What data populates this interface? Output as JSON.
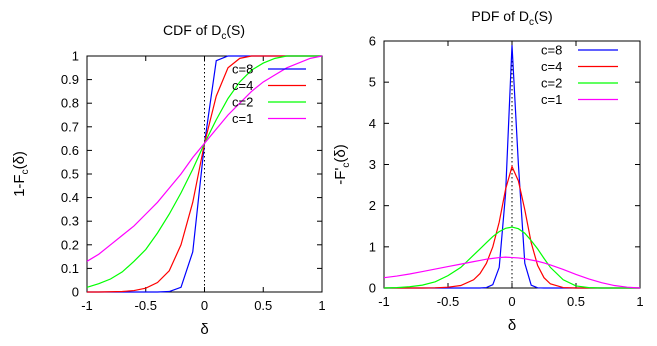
{
  "chart_data": [
    {
      "type": "line",
      "title": "CDF of D_c(S)",
      "title_parts": {
        "main": "CDF of D",
        "sub": "c",
        "tail": "(S)"
      },
      "xlabel": "δ",
      "ylabel_parts": {
        "main": "1-F",
        "sub": "c",
        "tail": "(δ)"
      },
      "xlim": [
        -1,
        1
      ],
      "ylim": [
        0,
        1
      ],
      "xticks": [
        -1,
        -0.5,
        0,
        0.5,
        1
      ],
      "xtick_labels": [
        "-1",
        "-0.5",
        "0",
        "0.5",
        "1"
      ],
      "yticks": [
        0,
        0.1,
        0.2,
        0.3,
        0.4,
        0.5,
        0.6,
        0.7,
        0.8,
        0.9,
        1
      ],
      "ytick_labels": [
        "0",
        "0.1",
        "0.2",
        "0.3",
        "0.4",
        "0.5",
        "0.6",
        "0.7",
        "0.8",
        "0.9",
        "1"
      ],
      "vline_x": 0,
      "legend_position": "top-right",
      "x": [
        -1,
        -0.9,
        -0.8,
        -0.7,
        -0.6,
        -0.5,
        -0.4,
        -0.3,
        -0.2,
        -0.1,
        0,
        0.1,
        0.2,
        0.3,
        0.4,
        0.5,
        0.6,
        0.7,
        0.8,
        0.9,
        1
      ],
      "series": [
        {
          "name": "c=8",
          "color": "#0000ff",
          "values": [
            0,
            0,
            0,
            0,
            0,
            0,
            0,
            0.002,
            0.02,
            0.17,
            0.63,
            0.98,
            1,
            1,
            1,
            1,
            1,
            1,
            1,
            1,
            1
          ]
        },
        {
          "name": "c=4",
          "color": "#ff0000",
          "values": [
            0,
            0,
            0.001,
            0.002,
            0.006,
            0.016,
            0.04,
            0.09,
            0.2,
            0.38,
            0.63,
            0.83,
            0.95,
            0.99,
            1,
            1,
            1,
            1,
            1,
            1,
            1
          ]
        },
        {
          "name": "c=2",
          "color": "#00ff00",
          "values": [
            0.02,
            0.035,
            0.055,
            0.085,
            0.13,
            0.18,
            0.25,
            0.33,
            0.42,
            0.52,
            0.63,
            0.73,
            0.82,
            0.89,
            0.94,
            0.97,
            0.99,
            1,
            1,
            1,
            1
          ]
        },
        {
          "name": "c=1",
          "color": "#ff00ff",
          "values": [
            0.13,
            0.16,
            0.2,
            0.24,
            0.28,
            0.33,
            0.38,
            0.44,
            0.5,
            0.57,
            0.63,
            0.69,
            0.75,
            0.8,
            0.85,
            0.89,
            0.92,
            0.95,
            0.97,
            0.99,
            1
          ]
        }
      ]
    },
    {
      "type": "line",
      "title": "PDF of D_c(S)",
      "title_parts": {
        "main": "PDF of D",
        "sub": "c",
        "tail": "(S)"
      },
      "xlabel": "δ",
      "ylabel_parts": {
        "main": "-F'",
        "sub": "c",
        "tail": "(δ)"
      },
      "xlim": [
        -1,
        1
      ],
      "ylim": [
        0,
        6
      ],
      "xticks": [
        -1,
        -0.5,
        0,
        0.5,
        1
      ],
      "xtick_labels": [
        "-1",
        "-0.5",
        "0",
        "0.5",
        "1"
      ],
      "yticks": [
        0,
        1,
        2,
        3,
        4,
        5,
        6
      ],
      "ytick_labels": [
        "0",
        "1",
        "2",
        "3",
        "4",
        "5",
        "6"
      ],
      "vline_x": 0,
      "legend_position": "top-right",
      "x": [
        -1,
        -0.9,
        -0.8,
        -0.7,
        -0.6,
        -0.5,
        -0.4,
        -0.3,
        -0.25,
        -0.2,
        -0.15,
        -0.1,
        -0.05,
        0,
        0.05,
        0.1,
        0.15,
        0.2,
        0.25,
        0.3,
        0.4,
        0.5,
        0.6,
        0.7,
        0.8,
        0.9,
        1
      ],
      "series": [
        {
          "name": "c=8",
          "color": "#0000ff",
          "values": [
            0,
            0,
            0,
            0,
            0,
            0,
            0,
            0,
            0,
            0.01,
            0.08,
            0.5,
            2.3,
            5.9,
            3.0,
            0.6,
            0.07,
            0.005,
            0,
            0,
            0,
            0,
            0,
            0,
            0,
            0,
            0
          ]
        },
        {
          "name": "c=4",
          "color": "#ff0000",
          "values": [
            0,
            0,
            0,
            0,
            0.005,
            0.02,
            0.06,
            0.2,
            0.35,
            0.6,
            1.0,
            1.6,
            2.4,
            2.95,
            2.6,
            1.9,
            1.1,
            0.55,
            0.25,
            0.1,
            0.01,
            0,
            0,
            0,
            0,
            0,
            0
          ]
        },
        {
          "name": "c=2",
          "color": "#00ff00",
          "values": [
            0,
            0.01,
            0.03,
            0.07,
            0.15,
            0.3,
            0.5,
            0.8,
            0.95,
            1.1,
            1.25,
            1.37,
            1.45,
            1.48,
            1.44,
            1.33,
            1.15,
            0.95,
            0.72,
            0.5,
            0.2,
            0.05,
            0.01,
            0,
            0,
            0,
            0
          ]
        },
        {
          "name": "c=1",
          "color": "#ff00ff",
          "values": [
            0.25,
            0.29,
            0.34,
            0.4,
            0.46,
            0.52,
            0.58,
            0.64,
            0.67,
            0.7,
            0.72,
            0.74,
            0.75,
            0.74,
            0.73,
            0.71,
            0.68,
            0.65,
            0.61,
            0.56,
            0.45,
            0.33,
            0.22,
            0.13,
            0.06,
            0.02,
            0
          ]
        }
      ]
    }
  ]
}
